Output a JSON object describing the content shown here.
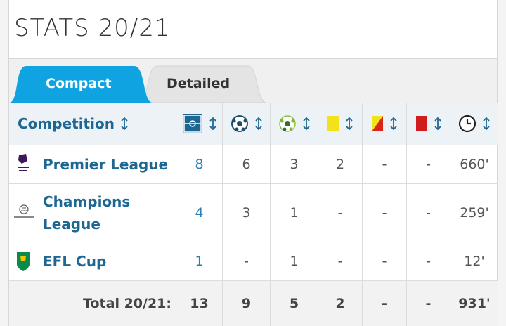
{
  "header": {
    "title": "STATS 20/21"
  },
  "tabs": [
    "Compact",
    "Detailed"
  ],
  "table": {
    "competition_header": "Competition",
    "rows": [
      {
        "competition": "Premier League",
        "cells": [
          8,
          6,
          3,
          2,
          "-",
          "-",
          "660'"
        ]
      },
      {
        "competition": "Champions League",
        "cells": [
          4,
          3,
          1,
          "-",
          "-",
          "-",
          "259'"
        ]
      },
      {
        "competition": "EFL Cup",
        "cells": [
          1,
          "-",
          1,
          "-",
          "-",
          "-",
          "12'"
        ]
      }
    ],
    "total": {
      "label": "Total 20/21:",
      "cells": [
        13,
        9,
        5,
        2,
        "-",
        "-",
        "931'"
      ]
    }
  }
}
